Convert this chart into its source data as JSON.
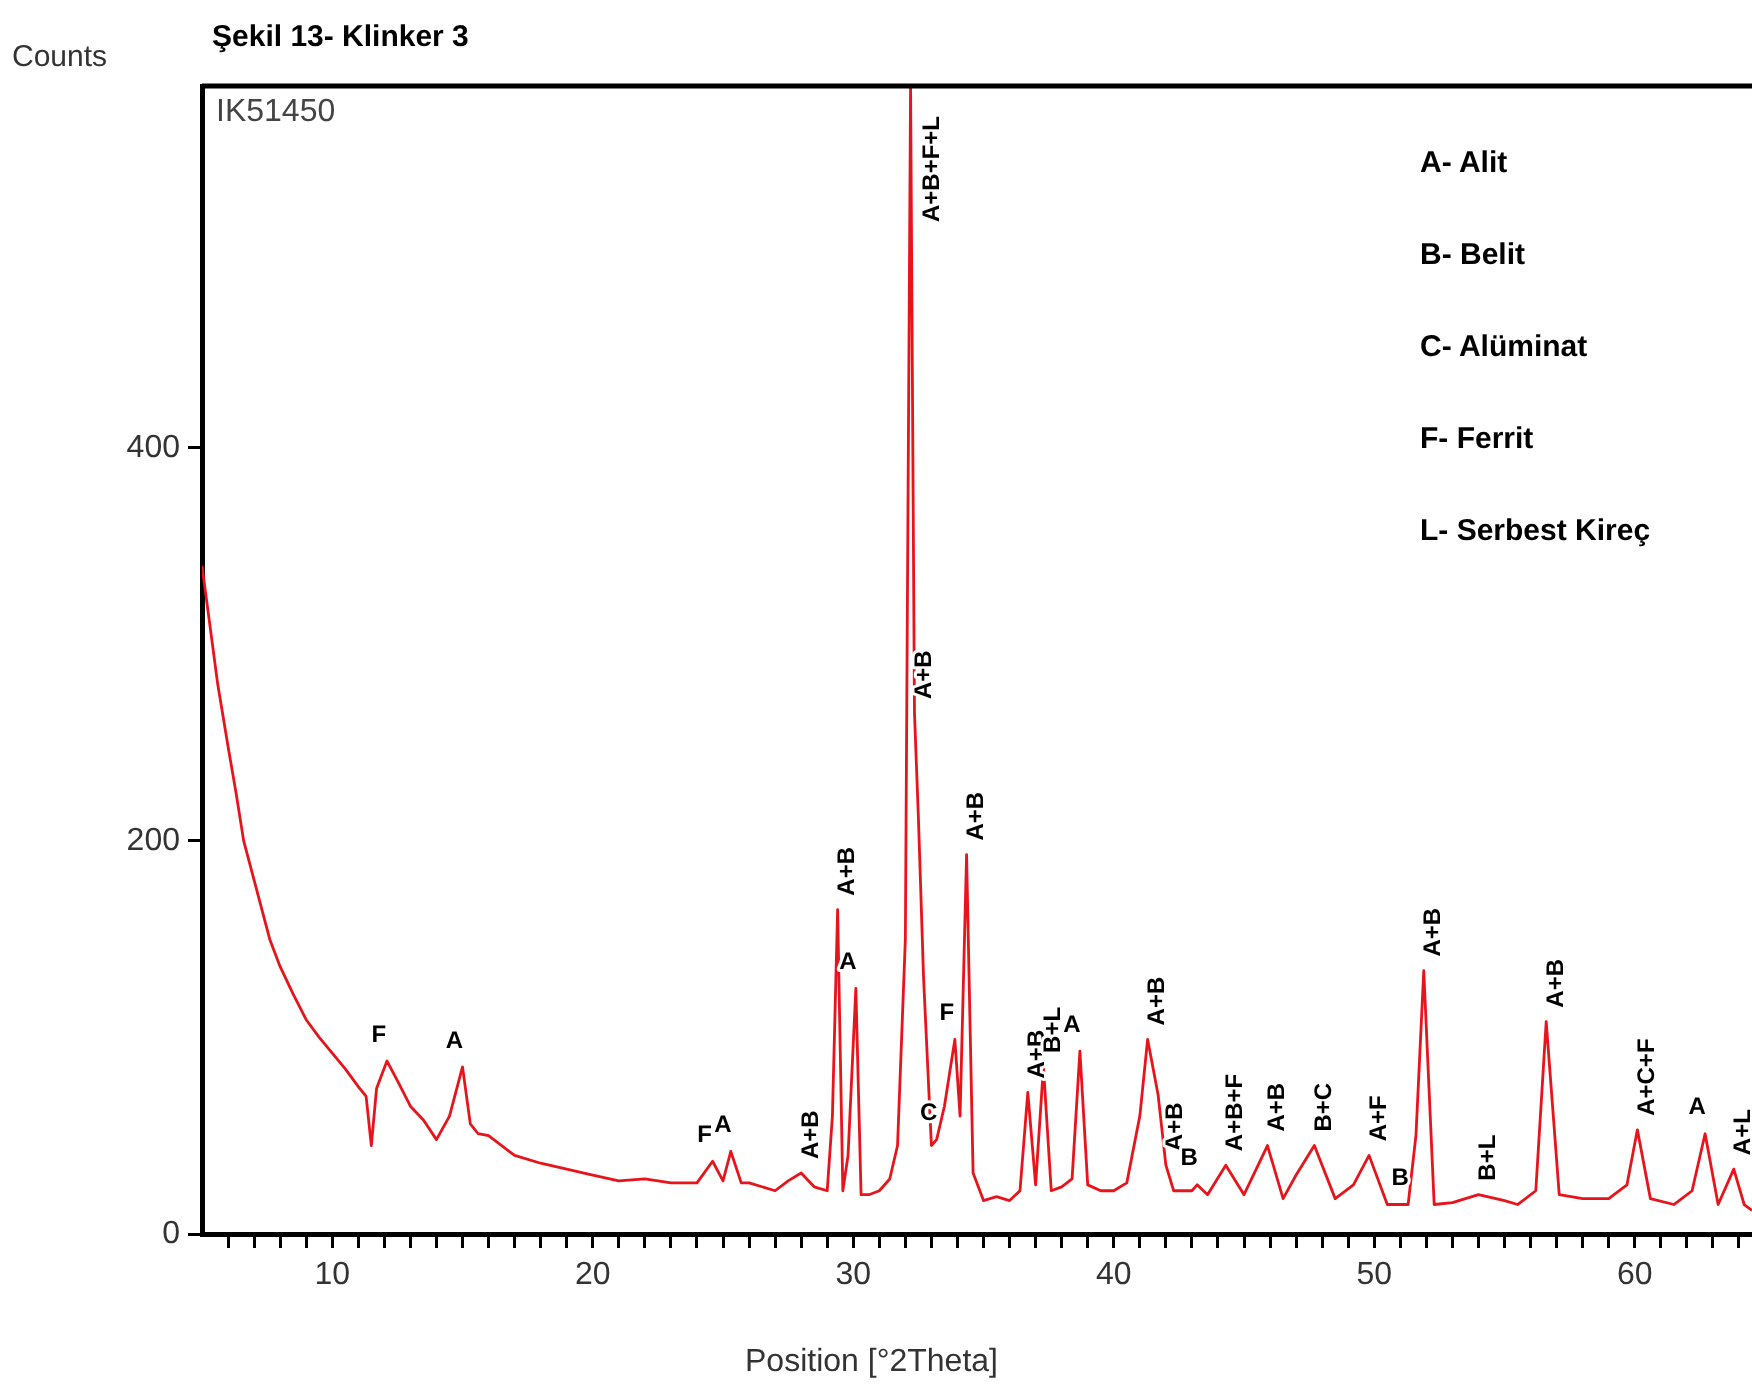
{
  "chart_data": {
    "type": "line",
    "title": "Şekil 13- Klinker 3",
    "xlabel": "Position [°2Theta]",
    "ylabel": "Counts",
    "xlim": [
      5,
      64.5
    ],
    "ylim": [
      0,
      584
    ],
    "xticks": [
      {
        "value": 6,
        "label": null
      },
      {
        "value": 7,
        "label": null
      },
      {
        "value": 8,
        "label": null
      },
      {
        "value": 9,
        "label": null
      },
      10,
      {
        "value": 11,
        "label": null
      },
      {
        "value": 12,
        "label": null
      },
      {
        "value": 13,
        "label": null
      },
      {
        "value": 14,
        "label": null
      },
      {
        "value": 15,
        "label": null
      },
      {
        "value": 16,
        "label": null
      },
      {
        "value": 17,
        "label": null
      },
      {
        "value": 18,
        "label": null
      },
      {
        "value": 19,
        "label": null
      },
      20,
      {
        "value": 21,
        "label": null
      },
      {
        "value": 22,
        "label": null
      },
      {
        "value": 23,
        "label": null
      },
      {
        "value": 24,
        "label": null
      },
      {
        "value": 25,
        "label": null
      },
      {
        "value": 26,
        "label": null
      },
      {
        "value": 27,
        "label": null
      },
      {
        "value": 28,
        "label": null
      },
      {
        "value": 29,
        "label": null
      },
      30,
      {
        "value": 31,
        "label": null
      },
      {
        "value": 32,
        "label": null
      },
      {
        "value": 33,
        "label": null
      },
      {
        "value": 34,
        "label": null
      },
      {
        "value": 35,
        "label": null
      },
      {
        "value": 36,
        "label": null
      },
      {
        "value": 37,
        "label": null
      },
      {
        "value": 38,
        "label": null
      },
      {
        "value": 39,
        "label": null
      },
      40,
      {
        "value": 41,
        "label": null
      },
      {
        "value": 42,
        "label": null
      },
      {
        "value": 43,
        "label": null
      },
      {
        "value": 44,
        "label": null
      },
      {
        "value": 45,
        "label": null
      },
      {
        "value": 46,
        "label": null
      },
      {
        "value": 47,
        "label": null
      },
      {
        "value": 48,
        "label": null
      },
      {
        "value": 49,
        "label": null
      },
      50,
      {
        "value": 51,
        "label": null
      },
      {
        "value": 52,
        "label": null
      },
      {
        "value": 53,
        "label": null
      },
      {
        "value": 54,
        "label": null
      },
      {
        "value": 55,
        "label": null
      },
      {
        "value": 56,
        "label": null
      },
      {
        "value": 57,
        "label": null
      },
      {
        "value": 58,
        "label": null
      },
      {
        "value": 59,
        "label": null
      },
      60,
      {
        "value": 61,
        "label": null
      },
      {
        "value": 62,
        "label": null
      },
      {
        "value": 63,
        "label": null
      },
      {
        "value": 64,
        "label": null
      }
    ],
    "yticks": [
      0,
      200,
      400
    ],
    "grid": false,
    "series": [
      {
        "color": "#e8141b",
        "x": [
          5,
          5.3,
          5.6,
          6,
          6.3,
          6.6,
          7,
          7.3,
          7.6,
          8,
          8.5,
          9,
          9.5,
          10,
          10.5,
          11,
          11.3,
          11.5,
          11.7,
          12.1,
          12.5,
          13,
          13.5,
          14,
          14.5,
          15,
          15.3,
          15.6,
          16,
          17,
          18,
          19,
          20,
          21,
          22,
          23,
          24,
          24.6,
          25,
          25.3,
          25.7,
          26,
          27,
          27.5,
          28,
          28.5,
          29,
          29.2,
          29.4,
          29.6,
          29.8,
          30.1,
          30.3,
          30.6,
          31,
          31.4,
          31.7,
          32,
          32.2,
          32.35,
          32.5,
          32.7,
          33,
          33.2,
          33.5,
          33.9,
          34.1,
          34.35,
          34.6,
          35,
          35.5,
          36,
          36.4,
          36.7,
          37,
          37.3,
          37.6,
          38,
          38.4,
          38.7,
          39,
          39.5,
          40,
          40.5,
          41,
          41.3,
          41.7,
          42,
          42.3,
          43,
          43.2,
          43.6,
          44.3,
          45,
          45.9,
          46.5,
          47,
          47.7,
          48.5,
          49.2,
          49.8,
          50.5,
          51.3,
          51.6,
          51.9,
          52.3,
          53,
          54,
          55,
          55.5,
          56.2,
          56.6,
          57.1,
          58,
          59,
          59.7,
          60.1,
          60.6,
          61.5,
          62.2,
          62.7,
          63.2,
          63.8,
          64.2,
          64.5
        ],
        "values": [
          340,
          310,
          280,
          248,
          225,
          200,
          180,
          165,
          150,
          136,
          122,
          109,
          100,
          92,
          84,
          75,
          70,
          45,
          74,
          88,
          78,
          65,
          58,
          48,
          60,
          85,
          56,
          51,
          50,
          40,
          36,
          33,
          30,
          27,
          28,
          26,
          26,
          37,
          27,
          42,
          26,
          26,
          22,
          27,
          31,
          24,
          22,
          60,
          165,
          22,
          40,
          125,
          20,
          20,
          22,
          28,
          45,
          150,
          584,
          265,
          212,
          130,
          45,
          48,
          65,
          99,
          60,
          193,
          31,
          17,
          19,
          17,
          22,
          72,
          25,
          85,
          22,
          24,
          28,
          93,
          25,
          22,
          22,
          26,
          60,
          99,
          71,
          35,
          22,
          22,
          25,
          20,
          35,
          20,
          45,
          18,
          30,
          45,
          18,
          25,
          40,
          15,
          15,
          50,
          134,
          15,
          16,
          20,
          17,
          15,
          22,
          108,
          20,
          18,
          18,
          25,
          53,
          18,
          15,
          22,
          51,
          15,
          33,
          15,
          12
        ]
      }
    ],
    "annotations": [
      "IK51450",
      "A- Alit",
      "B- Belit",
      "C- Alüminat",
      "F- Ferrit",
      "L- Serbest Kireç",
      {
        "text": "F",
        "x": 12.1,
        "y": 88
      },
      {
        "text": "A",
        "x": 15,
        "y": 85
      },
      {
        "text": "F",
        "x": 24.6,
        "y": 37
      },
      {
        "text": "A",
        "x": 25.3,
        "y": 42
      },
      {
        "text": "A+B",
        "x": 28,
        "y": 31
      },
      {
        "text": "A+B",
        "x": 29.4,
        "y": 165
      },
      {
        "text": "A",
        "x": 30.1,
        "y": 125
      },
      {
        "text": "A+B+F+L",
        "x": 32.2,
        "y": 584
      },
      {
        "text": "A+B",
        "x": 32.35,
        "y": 265
      },
      {
        "text": "C",
        "x": 33.2,
        "y": 48
      },
      {
        "text": "F",
        "x": 33.9,
        "y": 99
      },
      {
        "text": "A+B",
        "x": 34.35,
        "y": 193
      },
      {
        "text": "A+B",
        "x": 36.7,
        "y": 72
      },
      {
        "text": "B+L",
        "x": 37.3,
        "y": 85
      },
      {
        "text": "A",
        "x": 38.7,
        "y": 93
      },
      {
        "text": "A+B",
        "x": 41.3,
        "y": 99
      },
      {
        "text": "A+B",
        "x": 42,
        "y": 35
      },
      {
        "text": "B",
        "x": 43.2,
        "y": 25
      },
      {
        "text": "A+B+F",
        "x": 44.3,
        "y": 35
      },
      {
        "text": "A+B",
        "x": 45.9,
        "y": 45
      },
      {
        "text": "B+C",
        "x": 47.7,
        "y": 45
      },
      {
        "text": "A+F",
        "x": 49.8,
        "y": 40
      },
      {
        "text": "B",
        "x": 51.3,
        "y": 15
      },
      {
        "text": "A+B",
        "x": 51.9,
        "y": 134
      },
      {
        "text": "B+L",
        "x": 54,
        "y": 20
      },
      {
        "text": "A+B",
        "x": 56.6,
        "y": 108
      },
      {
        "text": "A+C+F",
        "x": 60.1,
        "y": 53
      },
      {
        "text": "A",
        "x": 62.7,
        "y": 51
      },
      {
        "text": "A+L",
        "x": 63.8,
        "y": 33
      }
    ]
  }
}
